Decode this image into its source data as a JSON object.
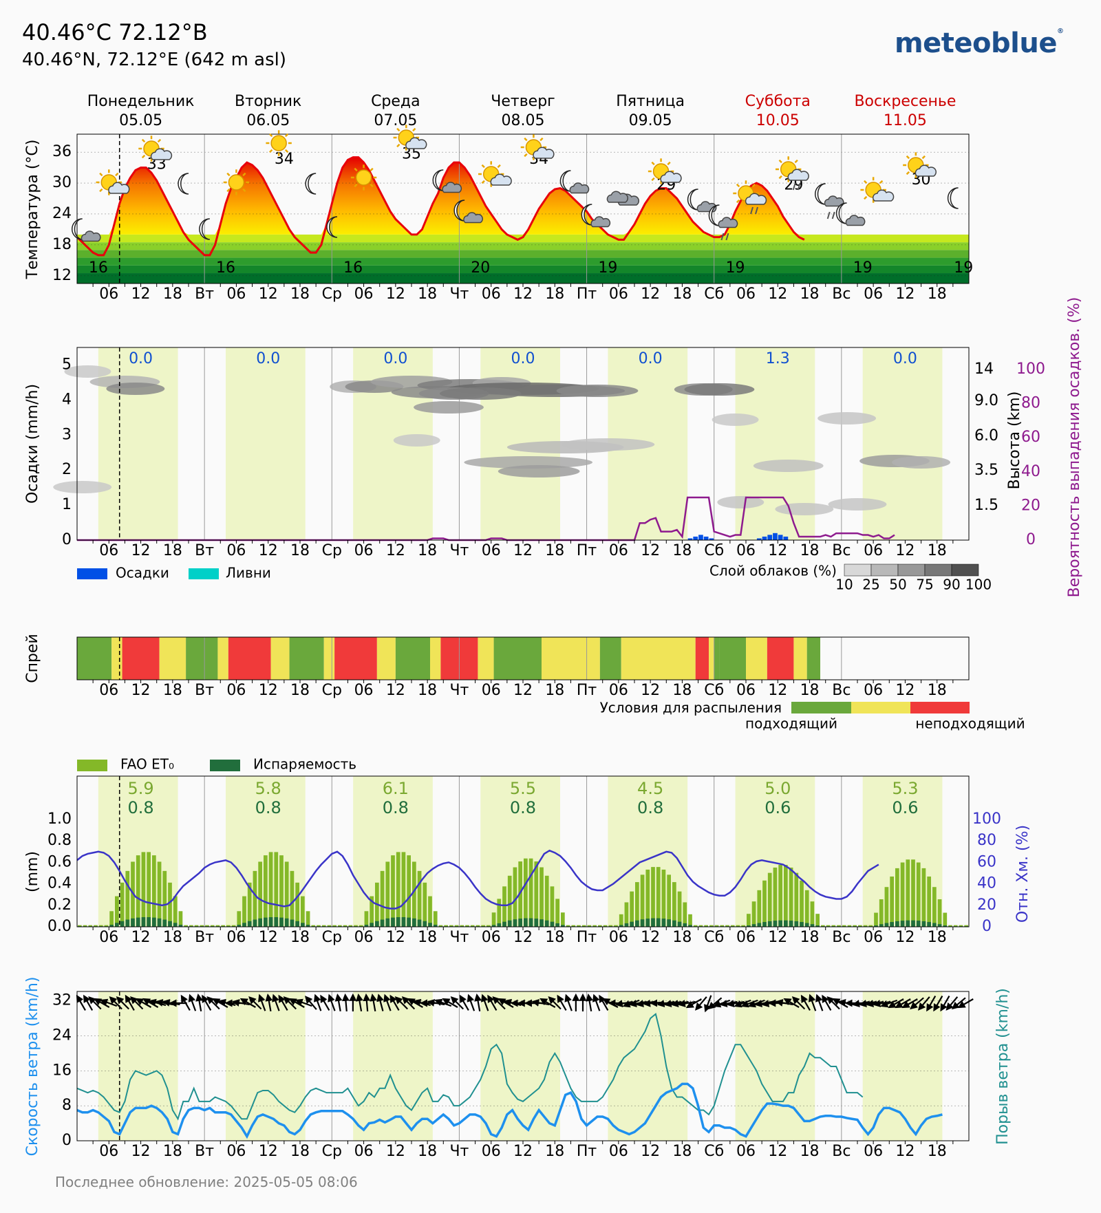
{
  "header": {
    "title": "40.46°С 72.12°В",
    "subtitle": "40.46°N, 72.12°E (642 m asl)",
    "logo": "meteoblue"
  },
  "footer": {
    "updated": "Последнее обновление: 2025-05-05 08:06"
  },
  "days": [
    {
      "name": "Понедельник",
      "date": "05.05",
      "weekend": false,
      "abbr": ""
    },
    {
      "name": "Вторник",
      "date": "06.05",
      "weekend": false,
      "abbr": "Вт"
    },
    {
      "name": "Среда",
      "date": "07.05",
      "weekend": false,
      "abbr": "Ср"
    },
    {
      "name": "Четверг",
      "date": "08.05",
      "weekend": false,
      "abbr": "Чт"
    },
    {
      "name": "Пятница",
      "date": "09.05",
      "weekend": false,
      "abbr": "Пт"
    },
    {
      "name": "Суббота",
      "date": "10.05",
      "weekend": true,
      "abbr": "Сб"
    },
    {
      "name": "Воскресенье",
      "date": "11.05",
      "weekend": true,
      "abbr": "Вс"
    }
  ],
  "hour_ticks": [
    "06",
    "12",
    "18"
  ],
  "colors": {
    "weekend": "#cc0000",
    "daylight_band": "#eef5c8",
    "temp_line": "#e8000b",
    "precip": "#0050e6",
    "showers": "#00d0c8",
    "prob_line": "#8e1a8e",
    "humidity": "#3a34c8",
    "fao": "#84b828",
    "evap": "#216e3c",
    "wind": "#1e90ee",
    "gust": "#209090",
    "suitable": "#6aa83c",
    "moderate": "#f0e458",
    "unsuitable": "#f03a3a"
  },
  "chart_data": [
    {
      "type": "line",
      "ylabel": "Температура (°C)",
      "yticks": [
        12,
        18,
        24,
        30,
        36
      ],
      "ylim": [
        10.5,
        39.5
      ],
      "temperature_hourly": [
        19.5,
        18.5,
        17.5,
        16.5,
        16,
        16,
        18,
        22,
        26,
        29,
        31,
        32.5,
        33,
        33,
        32,
        30.5,
        28.5,
        26.5,
        24.5,
        22.5,
        20.5,
        19,
        18,
        17,
        16,
        16,
        18,
        22,
        26,
        29,
        31,
        33,
        34,
        33.5,
        32.5,
        31,
        29,
        27,
        25,
        23,
        21,
        19.5,
        18.5,
        17.5,
        16.5,
        16.5,
        18,
        22,
        26,
        30,
        33,
        34.5,
        35,
        35,
        34,
        32.5,
        30.5,
        28.5,
        26.5,
        24.5,
        23,
        22,
        21,
        20,
        20,
        21,
        23.5,
        26,
        28,
        31,
        33,
        34,
        34,
        33,
        31.5,
        29.5,
        27.5,
        25.5,
        24,
        22.5,
        21,
        20,
        19.5,
        19,
        19.5,
        21,
        23,
        25,
        26.5,
        28,
        28.8,
        29,
        28.5,
        27.5,
        26.5,
        25.5,
        24.5,
        23,
        22,
        21,
        20,
        19.5,
        19,
        19,
        20.5,
        22,
        24,
        26,
        27.5,
        28.5,
        29,
        29,
        28,
        27,
        25.5,
        24,
        22.5,
        21.5,
        20.5,
        20,
        19.5,
        19.5,
        20,
        22,
        24.5,
        26.5,
        28.5,
        29.5,
        30,
        29.5,
        28.5,
        27,
        25.5,
        23.5,
        22,
        20.5,
        19.5,
        19
      ],
      "max_labels": [
        33,
        34,
        35,
        34,
        29,
        29,
        30
      ],
      "min_labels": [
        16,
        16,
        16,
        20,
        19,
        19,
        19,
        19
      ]
    },
    {
      "type": "area",
      "ylabel": "Осадки (mm/h)",
      "y2label": "Высота (km)",
      "y3label": "Вероятность выпадения осадков. (%)",
      "yticks": [
        0,
        1,
        2,
        3,
        4,
        5
      ],
      "height_ticks": [
        "1.5",
        "3.5",
        "6.0",
        "9.0",
        "14"
      ],
      "prob_ticks": [
        0,
        20,
        40,
        60,
        80,
        100
      ],
      "daily_precip": [
        "0.0",
        "0.0",
        "0.0",
        "0.0",
        "0.0",
        "1.3",
        "0.0"
      ],
      "legend": [
        "Осадки",
        "Ливни"
      ],
      "cloud_legend_title": "Слой облаков (%)",
      "cloud_legend_ticks": [
        "10",
        "25",
        "50",
        "75",
        "90",
        "100"
      ],
      "probability_hourly": [
        0,
        0,
        0,
        0,
        0,
        0,
        0,
        0,
        0,
        0,
        0,
        0,
        0,
        0,
        0,
        0,
        0,
        0,
        0,
        0,
        0,
        0,
        0,
        0,
        0,
        0,
        0,
        0,
        0,
        0,
        0,
        0,
        0,
        0,
        0,
        0,
        0,
        0,
        0,
        0,
        0,
        0,
        0,
        0,
        0,
        0,
        0,
        0,
        0,
        0,
        0,
        0,
        0,
        0,
        0,
        0,
        0,
        0,
        0,
        0,
        0,
        0,
        0,
        0,
        0,
        0,
        0,
        1,
        1,
        1,
        0,
        0,
        0,
        0,
        0,
        0,
        0,
        0,
        1,
        1,
        1,
        0,
        0,
        0,
        0,
        0,
        0,
        0,
        0,
        0,
        0,
        0,
        0,
        0,
        0,
        0,
        0,
        0,
        0,
        0,
        0,
        0,
        0,
        0,
        0,
        0,
        10,
        10,
        12,
        13,
        5,
        5,
        5,
        6,
        2,
        25,
        25,
        25,
        25,
        25,
        5,
        4,
        3,
        2,
        3,
        3,
        25,
        25,
        25,
        25,
        25,
        25,
        25,
        25,
        20,
        10,
        2,
        2,
        2,
        2,
        2,
        3,
        2,
        4,
        4,
        4,
        4,
        4,
        3,
        3,
        2,
        3,
        1,
        1,
        3
      ],
      "precip_hourly": [
        0,
        0,
        0,
        0,
        0,
        0,
        0,
        0,
        0,
        0,
        0,
        0,
        0,
        0,
        0,
        0,
        0,
        0,
        0,
        0,
        0,
        0,
        0,
        0,
        0,
        0,
        0,
        0,
        0,
        0,
        0,
        0,
        0,
        0,
        0,
        0,
        0,
        0,
        0,
        0,
        0,
        0,
        0,
        0,
        0,
        0,
        0,
        0,
        0,
        0,
        0,
        0,
        0,
        0,
        0,
        0,
        0,
        0,
        0,
        0,
        0,
        0,
        0,
        0,
        0,
        0,
        0,
        0,
        0,
        0,
        0,
        0,
        0,
        0,
        0,
        0,
        0,
        0,
        0,
        0,
        0,
        0,
        0,
        0,
        0,
        0,
        0,
        0,
        0,
        0,
        0,
        0,
        0,
        0,
        0,
        0,
        0,
        0,
        0,
        0,
        0,
        0,
        0,
        0,
        0,
        0,
        0,
        0,
        0,
        0,
        0,
        0,
        0,
        0,
        0,
        0.05,
        0.1,
        0.15,
        0.1,
        0.05,
        0,
        0,
        0,
        0,
        0,
        0,
        0,
        0,
        0.05,
        0.1,
        0.15,
        0.2,
        0.15,
        0.1,
        0,
        0,
        0,
        0,
        0,
        0,
        0,
        0,
        0,
        0,
        0,
        0,
        0,
        0,
        0,
        0,
        0,
        0,
        0,
        0
      ]
    },
    {
      "type": "heatmap",
      "ylabel": "Спрей",
      "legend_title": "Условия для распыления",
      "legend_low": "подходящий",
      "legend_high": "неподходящий",
      "segments": [
        {
          "from": 0,
          "to": 6.5,
          "level": "suitable"
        },
        {
          "from": 6.5,
          "to": 8.5,
          "level": "moderate"
        },
        {
          "from": 8.5,
          "to": 15.5,
          "level": "unsuitable"
        },
        {
          "from": 15.5,
          "to": 20.5,
          "level": "moderate"
        },
        {
          "from": 20.5,
          "to": 26.5,
          "level": "suitable"
        },
        {
          "from": 26.5,
          "to": 28.5,
          "level": "moderate"
        },
        {
          "from": 28.5,
          "to": 36.5,
          "level": "unsuitable"
        },
        {
          "from": 36.5,
          "to": 40,
          "level": "moderate"
        },
        {
          "from": 40,
          "to": 46.5,
          "level": "suitable"
        },
        {
          "from": 46.5,
          "to": 48.5,
          "level": "moderate"
        },
        {
          "from": 48.5,
          "to": 56.5,
          "level": "unsuitable"
        },
        {
          "from": 56.5,
          "to": 60,
          "level": "moderate"
        },
        {
          "from": 60,
          "to": 66.5,
          "level": "suitable"
        },
        {
          "from": 66.5,
          "to": 68.5,
          "level": "moderate"
        },
        {
          "from": 68.5,
          "to": 75.5,
          "level": "unsuitable"
        },
        {
          "from": 75.5,
          "to": 78.5,
          "level": "moderate"
        },
        {
          "from": 78.5,
          "to": 87.5,
          "level": "suitable"
        },
        {
          "from": 87.5,
          "to": 98.5,
          "level": "moderate"
        },
        {
          "from": 98.5,
          "to": 102.5,
          "level": "suitable"
        },
        {
          "from": 102.5,
          "to": 116.5,
          "level": "moderate"
        },
        {
          "from": 116.5,
          "to": 119,
          "level": "unsuitable"
        },
        {
          "from": 119,
          "to": 120,
          "level": "moderate"
        },
        {
          "from": 120,
          "to": 121,
          "level": "suitable"
        },
        {
          "from": 121,
          "to": 126,
          "level": "suitable"
        },
        {
          "from": 126,
          "to": 130,
          "level": "moderate"
        },
        {
          "from": 130,
          "to": 135,
          "level": "unsuitable"
        },
        {
          "from": 135,
          "to": 137.5,
          "level": "moderate"
        },
        {
          "from": 137.5,
          "to": 140,
          "level": "suitable"
        }
      ]
    },
    {
      "type": "bar",
      "ylabel": "(mm)",
      "y2label": "Отн. Хм. (%)",
      "yticks": [
        "0.0",
        "0.2",
        "0.4",
        "0.6",
        "0.8",
        "1.0"
      ],
      "rh_ticks": [
        0,
        20,
        40,
        60,
        80,
        100
      ],
      "legend": [
        "FAO ET₀",
        "Испаряемость"
      ],
      "daily_fao": [
        "5.9",
        "5.8",
        "6.1",
        "5.5",
        "4.5",
        "5.0",
        "5.3"
      ],
      "daily_evap": [
        "0.8",
        "0.8",
        "0.8",
        "0.8",
        "0.8",
        "0.6",
        "0.6"
      ],
      "day_peak_fao": [
        0.7,
        0.7,
        0.7,
        0.64,
        0.56,
        0.58,
        0.63
      ],
      "day_peak_evap": [
        0.09,
        0.09,
        0.09,
        0.08,
        0.08,
        0.06,
        0.06
      ],
      "humidity_hourly": [
        62,
        66,
        68,
        69,
        70,
        69,
        66,
        60,
        52,
        43,
        35,
        28,
        25,
        23,
        22,
        21,
        20,
        21,
        25,
        32,
        38,
        42,
        46,
        50,
        55,
        58,
        60,
        61,
        62,
        60,
        55,
        48,
        40,
        33,
        27,
        24,
        22,
        21,
        20,
        19,
        20,
        25,
        31,
        38,
        45,
        52,
        58,
        63,
        68,
        70,
        66,
        58,
        48,
        40,
        32,
        26,
        22,
        20,
        18,
        17,
        17,
        19,
        24,
        30,
        37,
        44,
        50,
        54,
        57,
        59,
        60,
        58,
        55,
        50,
        44,
        37,
        31,
        26,
        23,
        21,
        20,
        20,
        22,
        28,
        36,
        44,
        52,
        60,
        68,
        71,
        69,
        66,
        61,
        55,
        48,
        42,
        38,
        35,
        34,
        34,
        37,
        40,
        44,
        48,
        52,
        56,
        60,
        62,
        64,
        66,
        68,
        70,
        69,
        64,
        56,
        48,
        42,
        38,
        35,
        32,
        30,
        29,
        29,
        32,
        37,
        44,
        52,
        58,
        61,
        62,
        61,
        60,
        59,
        58,
        55,
        51,
        46,
        42,
        37,
        33,
        30,
        28,
        27,
        26,
        26,
        28,
        33,
        40,
        46,
        52,
        55,
        58
      ]
    },
    {
      "type": "line",
      "ylabel": "Скорость ветра (km/h)",
      "y2label": "Порыв ветра (km/h)",
      "yticks": [
        0,
        8,
        16,
        24,
        32
      ],
      "wind_hourly": [
        7,
        6.5,
        6.5,
        7,
        6.5,
        5.5,
        4.5,
        2,
        1.5,
        4,
        6.5,
        7.5,
        7.5,
        7.5,
        8,
        7.5,
        6.5,
        5,
        2,
        1.5,
        5,
        7,
        7.5,
        7.5,
        7,
        7.5,
        6.5,
        6.5,
        6.5,
        6,
        4.5,
        3,
        1,
        3.5,
        5.5,
        6,
        5.5,
        5,
        4,
        3.5,
        2,
        1.5,
        2.5,
        4.5,
        6,
        6.5,
        6.8,
        6.8,
        6.8,
        6.8,
        6.8,
        6,
        5,
        3.5,
        2.5,
        4,
        4.2,
        4.8,
        4.2,
        4.8,
        5.5,
        5.5,
        4,
        2.5,
        4,
        5,
        5,
        4,
        5,
        6,
        5,
        3.5,
        4,
        5,
        6,
        6,
        5.5,
        4,
        1.5,
        1,
        3,
        6,
        7,
        5,
        3.5,
        2.5,
        5,
        7,
        5.5,
        4,
        3.5,
        7,
        10.5,
        11,
        9,
        5,
        3.5,
        4.5,
        5.5,
        5.5,
        5,
        3.5,
        2.5,
        2,
        1.5,
        2,
        3,
        4,
        6,
        8,
        10,
        11,
        11.5,
        12,
        13,
        13,
        12,
        8,
        3,
        2,
        3.5,
        3.5,
        3,
        3,
        2.5,
        1.5,
        1,
        3,
        5,
        7,
        8.5,
        8.5,
        8.3,
        8,
        8,
        7.5,
        6,
        4.5,
        4.5,
        5,
        5.5,
        5.7,
        5.7,
        5.5,
        5.5,
        5.2,
        5,
        4.8,
        3,
        1.5,
        3,
        6,
        7.5,
        7.5,
        7,
        6.5,
        5,
        3,
        1.5,
        3.5,
        5,
        5.5,
        5.7,
        6
      ],
      "gust_hourly": [
        12,
        11.5,
        11,
        11.5,
        11,
        10,
        8.5,
        7,
        6.5,
        9,
        14,
        16,
        15.5,
        15,
        15.5,
        16,
        15,
        12,
        7,
        5,
        9,
        9,
        12,
        9,
        9,
        9,
        10,
        9.5,
        9,
        8,
        6.5,
        5,
        5,
        8,
        11,
        11.5,
        11.5,
        10.5,
        9,
        8,
        7,
        6.5,
        8,
        10,
        11.5,
        12,
        11.5,
        11,
        11,
        11,
        11,
        12,
        10,
        8,
        9,
        11,
        10,
        12,
        12,
        15,
        12,
        10,
        8,
        7,
        9,
        11,
        12,
        9,
        9,
        10.5,
        10,
        8,
        8,
        9,
        10,
        12,
        14,
        17,
        21,
        22,
        20,
        13,
        11,
        9.5,
        9,
        10,
        11,
        12,
        14,
        18,
        20,
        18,
        15,
        12,
        10,
        9,
        9,
        9,
        9,
        10,
        12,
        14,
        17,
        19,
        20,
        21,
        23,
        25,
        28,
        29,
        24,
        17,
        12,
        10,
        10,
        9,
        8,
        7,
        7,
        6,
        8,
        12,
        16,
        19,
        22,
        22,
        20,
        18,
        16,
        13,
        11,
        9,
        9,
        9,
        11,
        11,
        15,
        17,
        20,
        19,
        19,
        18,
        17,
        17,
        14,
        11,
        11,
        11,
        10
      ],
      "arrow_rotation_deg": [
        -30,
        -30,
        -45,
        -60,
        -70,
        -45,
        -45,
        -30,
        -45,
        -60,
        -60,
        -75,
        -80,
        -80,
        -90,
        -30,
        -20,
        -10,
        -30,
        -45,
        -60,
        -75,
        -90,
        -80,
        -60,
        -45,
        -20,
        -10,
        -20,
        -30,
        -45,
        -60,
        -70,
        -40,
        -20,
        -30,
        -20,
        -10,
        -5,
        0,
        -10,
        -5,
        -10,
        -15,
        -20,
        -30,
        -45,
        -45,
        -60,
        -75,
        -90,
        -80,
        -70,
        -60,
        -45,
        -30,
        -20,
        -10,
        -20,
        -30,
        -45,
        -60,
        -75,
        -90,
        -90,
        -90,
        -80,
        -60,
        -45,
        -30,
        -20,
        0,
        0,
        -10,
        -20,
        -30,
        -60,
        -90,
        -100,
        -110,
        -100,
        -100,
        -95,
        -90,
        -100,
        -100,
        -100,
        -100,
        -120,
        -140,
        -160,
        -130,
        -110,
        -100,
        -100,
        -110,
        -110,
        -110,
        -100,
        -100,
        -90,
        -80,
        -60,
        -45,
        -30,
        -20,
        -20,
        -30,
        -45,
        -60,
        -80,
        -90,
        -100,
        -100,
        -100,
        -100,
        -110,
        -120,
        -120,
        -120,
        -130,
        -140,
        -150,
        -150,
        -150,
        -140,
        -130,
        -120
      ]
    }
  ]
}
